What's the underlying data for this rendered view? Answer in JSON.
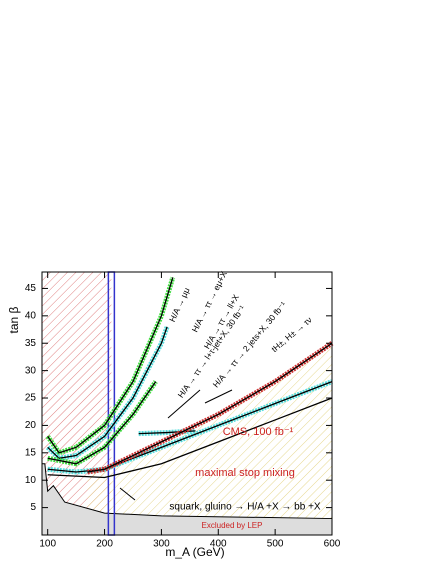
{
  "chart_data": {
    "type": "line",
    "xlabel": "m_A (GeV)",
    "ylabel": "tan β",
    "xlim": [
      90,
      600
    ],
    "ylim": [
      0,
      48
    ],
    "xticks": [
      100,
      200,
      300,
      400,
      500,
      600
    ],
    "yticks": [
      5,
      10,
      15,
      20,
      25,
      30,
      35,
      40,
      45
    ],
    "series": [
      {
        "name": "H/A → μμ",
        "color": "#44dd44",
        "x": [
          100,
          120,
          150,
          200,
          250,
          300,
          320
        ],
        "values": [
          18,
          15,
          16,
          20,
          28,
          40,
          47
        ]
      },
      {
        "name": "H/A → ττ → eμ+X",
        "color": "#55dddd",
        "x": [
          100,
          120,
          150,
          200,
          250,
          300,
          310
        ],
        "values": [
          16,
          14,
          14.5,
          18,
          25,
          35,
          38
        ]
      },
      {
        "name": "H/A → ττ → ll+X",
        "color": "#44dd44",
        "x": [
          100,
          150,
          200,
          250,
          290
        ],
        "values": [
          14,
          13,
          16,
          22,
          28
        ]
      },
      {
        "name": "H/A → ττ → l+τ-jet+X, 30 fb⁻¹",
        "color": "#55dddd",
        "x": [
          100,
          150,
          200,
          300,
          400,
          500,
          600
        ],
        "values": [
          12,
          11.5,
          12,
          16,
          20,
          24,
          28
        ]
      },
      {
        "name": "H/A → ττ → 2 jets+X, 30 fb⁻¹",
        "color": "#55dddd",
        "x": [
          260,
          310,
          360
        ],
        "values": [
          18.5,
          18.7,
          19
        ]
      },
      {
        "name": "tH±, H± → τν",
        "color": "#cc3333",
        "x": [
          170,
          200,
          300,
          400,
          500,
          600
        ],
        "values": [
          11.5,
          12,
          17,
          22,
          28,
          35
        ]
      },
      {
        "name": "squark, gluino → H/A +X → bb +X",
        "color": "#000000",
        "x": [
          100,
          200,
          300,
          400,
          500,
          600
        ],
        "values": [
          11,
          10.5,
          13,
          17,
          21,
          25
        ]
      }
    ],
    "lep_region": {
      "name": "Excluded by LEP",
      "color": "#dddddd",
      "x": [
        95,
        100,
        110,
        130,
        200,
        300,
        600
      ],
      "values": [
        13,
        8,
        9,
        6,
        4,
        3.5,
        3
      ]
    },
    "reference_line": {
      "x": 212,
      "color": "#3333cc"
    },
    "annotations": [
      "CMS, 100 fb⁻¹",
      "maximal stop mixing"
    ]
  }
}
